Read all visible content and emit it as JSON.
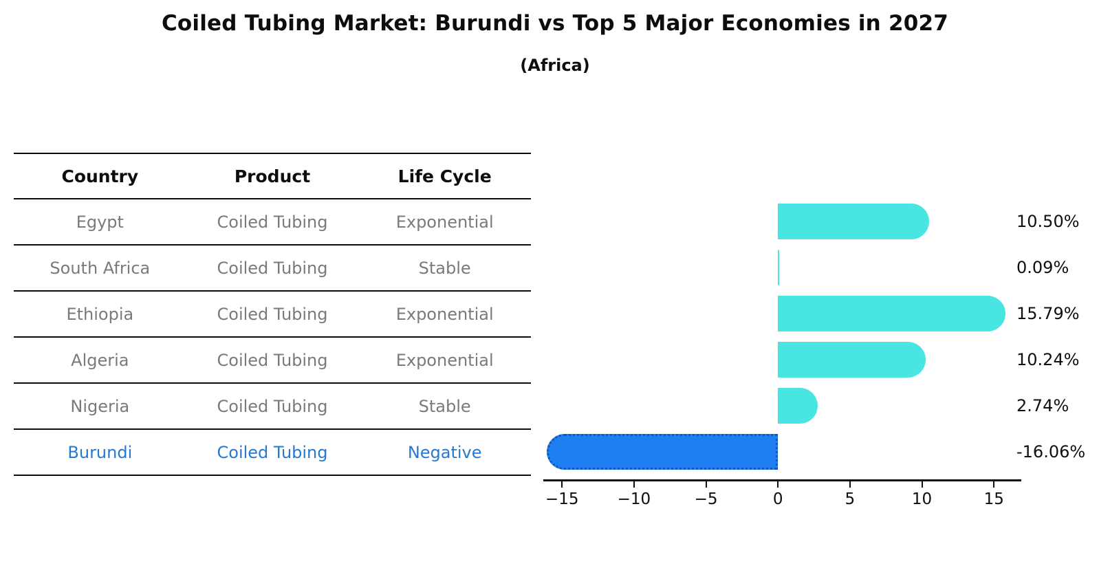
{
  "title": "Coiled Tubing Market: Burundi vs Top 5 Major Economies in 2027",
  "subtitle": "(Africa)",
  "table": {
    "headers": [
      "Country",
      "Product",
      "Life Cycle"
    ],
    "rows": [
      {
        "country": "Egypt",
        "product": "Coiled Tubing",
        "life_cycle": "Exponential"
      },
      {
        "country": "South Africa",
        "product": "Coiled Tubing",
        "life_cycle": "Stable"
      },
      {
        "country": "Ethiopia",
        "product": "Coiled Tubing",
        "life_cycle": "Exponential"
      },
      {
        "country": "Algeria",
        "product": "Coiled Tubing",
        "life_cycle": "Exponential"
      },
      {
        "country": "Nigeria",
        "product": "Coiled Tubing",
        "life_cycle": "Stable"
      },
      {
        "country": "Burundi",
        "product": "Coiled Tubing",
        "life_cycle": "Negative"
      }
    ]
  },
  "chart_data": {
    "type": "bar",
    "orientation": "horizontal",
    "title": "Coiled Tubing Market: Burundi vs Top 5 Major Economies in 2027 (Africa)",
    "categories": [
      "Egypt",
      "South Africa",
      "Ethiopia",
      "Algeria",
      "Nigeria",
      "Burundi"
    ],
    "values": [
      10.5,
      0.09,
      15.79,
      10.24,
      2.74,
      -16.06
    ],
    "value_labels": [
      "10.50%",
      "0.09%",
      "15.79%",
      "10.24%",
      "2.74%",
      "-16.06%"
    ],
    "highlight_index": 5,
    "xlim": [
      -16.3,
      16.9
    ],
    "xticks": [
      -15,
      -10,
      -5,
      0,
      5,
      10,
      15
    ],
    "xtick_labels": [
      "−15",
      "−10",
      "−5",
      "0",
      "5",
      "10",
      "15"
    ],
    "grid": false,
    "legend": "none",
    "colors": {
      "bar_default": "#48e5e3",
      "bar_highlight": "#1e7ff2",
      "bar_highlight_border": "#1057b8",
      "highlight_text": "#2479d0",
      "muted_text": "#7a7a7a"
    }
  }
}
